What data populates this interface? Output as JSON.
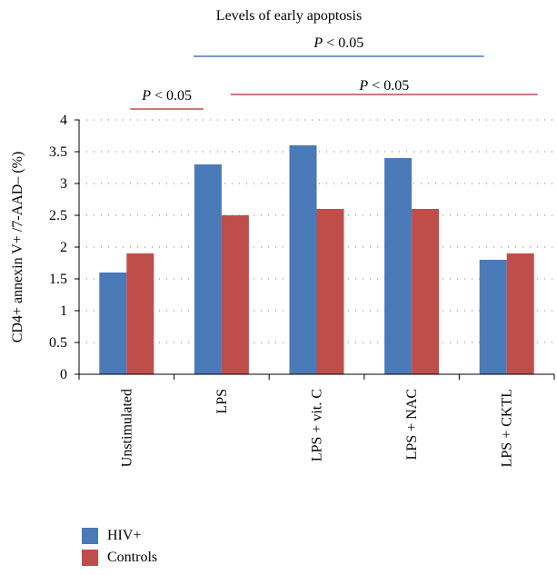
{
  "chart_data": {
    "type": "bar",
    "title": "Levels of early apoptosis",
    "ylabel": "CD4+ annexin V+ /7-AAD– (%)",
    "xlabel": "",
    "ylim": [
      0,
      4
    ],
    "yticks": [
      "0",
      "0.5",
      "1",
      "1.5",
      "2",
      "2.5",
      "3",
      "3.5",
      "4"
    ],
    "categories": [
      "Unstimulated",
      "LPS",
      "LPS + vit. C",
      "LPS + NAC",
      "LPS + CKTL"
    ],
    "series": [
      {
        "name": "HIV+",
        "color": "#4a7ab8",
        "values": [
          1.6,
          3.3,
          3.6,
          3.4,
          1.8
        ]
      },
      {
        "name": "Controls",
        "color": "#bf4d4a",
        "values": [
          1.9,
          2.5,
          2.6,
          2.6,
          1.9
        ]
      }
    ],
    "grid": "dotted horizontal",
    "legend_position": "bottom-left",
    "annotations": [
      {
        "text": "P < 0.05",
        "color": "#4a7ab8",
        "from_category": "LPS",
        "to_category": "LPS + CKTL",
        "level": "top"
      },
      {
        "text": "P < 0.05",
        "color": "#bf4d4a",
        "from_category": "Unstimulated",
        "to_category": "LPS",
        "level": "lower"
      },
      {
        "text": "P < 0.05",
        "color": "#bf4d4a",
        "from_category": "LPS",
        "to_category": "LPS + CKTL",
        "level": "lower"
      }
    ]
  }
}
